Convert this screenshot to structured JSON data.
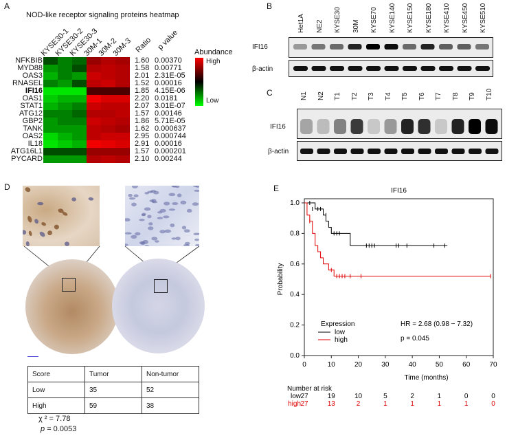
{
  "panelA": {
    "letter": "A",
    "title": "NOD-like receptor signaling proteins heatmap",
    "columns": [
      "KYSE30-1",
      "KYSE30-2",
      "KYSE30-3",
      "30M-1",
      "30M-2",
      "30M-3"
    ],
    "ratio_header": "Ratio",
    "pvalue_header": "p value",
    "legend_title": "Abundance",
    "legend_high": "High",
    "legend_low": "Low",
    "rows": [
      {
        "gene": "NFKBIB",
        "ratio": "1.60",
        "p": "0.00370"
      },
      {
        "gene": "MYD88",
        "ratio": "1.58",
        "p": "0.00771"
      },
      {
        "gene": "OAS3",
        "ratio": "2.01",
        "p": "2.31E-05"
      },
      {
        "gene": "RNASEL",
        "ratio": "1.52",
        "p": "0.00016"
      },
      {
        "gene": "IFI16",
        "ratio": "1.85",
        "p": "4.15E-06"
      },
      {
        "gene": "OAS1",
        "ratio": "2.20",
        "p": "0.0181"
      },
      {
        "gene": "STAT1",
        "ratio": "2.07",
        "p": "3.01E-07"
      },
      {
        "gene": "ATG12",
        "ratio": "1.57",
        "p": "0.00146"
      },
      {
        "gene": "GBP2",
        "ratio": "1.86",
        "p": "5.71E-05"
      },
      {
        "gene": "TANK",
        "ratio": "1.62",
        "p": "0.000637"
      },
      {
        "gene": "OAS2",
        "ratio": "2.95",
        "p": "0.000744"
      },
      {
        "gene": "IL18",
        "ratio": "2.91",
        "p": "0.00016"
      },
      {
        "gene": "ATG16L1",
        "ratio": "1.57",
        "p": "0.000201"
      },
      {
        "gene": "PYCARD",
        "ratio": "2.10",
        "p": "0.00244"
      }
    ],
    "colors": {
      "high": "#ff0000",
      "mid": "#000000",
      "low": "#00ff00"
    }
  },
  "panelB": {
    "letter": "B",
    "lanes": [
      "Het1A",
      "NE2",
      "KYSE30",
      "30M",
      "KYSE70",
      "KYSE140",
      "KYSE150",
      "KYSE180",
      "KYSE410",
      "KYSE450",
      "KYSE510"
    ],
    "row1": "IFI16",
    "row2": "β-actin"
  },
  "panelC": {
    "letter": "C",
    "lanes": [
      "N1",
      "N2",
      "T1",
      "T2",
      "T3",
      "T4",
      "T5",
      "T6",
      "T7",
      "T8",
      "T9",
      "T10"
    ],
    "row1": "IFI16",
    "row2": "β-actin"
  },
  "panelD": {
    "letter": "D",
    "table": {
      "header": [
        "Score",
        "Tumor",
        "Non-tumor"
      ],
      "rows": [
        [
          "Low",
          "35",
          "52"
        ],
        [
          "High",
          "59",
          "38"
        ]
      ]
    },
    "chi": "χ ² = 7.78",
    "p_label": "p",
    "p_value": "= 0.0053"
  },
  "panelE": {
    "letter": "E",
    "chart_data": {
      "type": "line",
      "title": "IFI16",
      "xlabel": "Time (months)",
      "ylabel": "Probability",
      "xlim": [
        0,
        70
      ],
      "ylim": [
        0,
        1.0
      ],
      "xticks": [
        0,
        10,
        20,
        30,
        40,
        50,
        60,
        70
      ],
      "yticks": [
        0,
        0.2,
        0.4,
        0.6,
        0.8,
        1.0
      ],
      "legend_title": "Expression",
      "hr_text": "HR = 2.68 (0.98 − 7.32)",
      "p_text": "p = 0.045",
      "series": [
        {
          "name": "low",
          "color": "#000000",
          "steps": [
            [
              0,
              1.0
            ],
            [
              4,
              0.96
            ],
            [
              7,
              0.92
            ],
            [
              8,
              0.88
            ],
            [
              9,
              0.84
            ],
            [
              10,
              0.8
            ],
            [
              17,
              0.72
            ],
            [
              53,
              0.72
            ]
          ],
          "censors": [
            [
              2,
              1.0
            ],
            [
              3,
              0.96
            ],
            [
              5,
              0.96
            ],
            [
              6,
              0.96
            ],
            [
              8,
              0.92
            ],
            [
              11,
              0.8
            ],
            [
              12,
              0.8
            ],
            [
              13,
              0.8
            ],
            [
              23,
              0.72
            ],
            [
              24,
              0.72
            ],
            [
              25,
              0.72
            ],
            [
              26,
              0.72
            ],
            [
              34,
              0.72
            ],
            [
              35,
              0.72
            ],
            [
              38,
              0.72
            ],
            [
              48,
              0.72
            ],
            [
              52,
              0.72
            ]
          ]
        },
        {
          "name": "high",
          "color": "#e00000",
          "steps": [
            [
              0,
              1.0
            ],
            [
              1,
              0.92
            ],
            [
              2,
              0.88
            ],
            [
              3,
              0.8
            ],
            [
              4,
              0.72
            ],
            [
              5,
              0.68
            ],
            [
              6,
              0.64
            ],
            [
              7,
              0.6
            ],
            [
              9,
              0.56
            ],
            [
              11,
              0.52
            ],
            [
              69,
              0.52
            ]
          ],
          "censors": [
            [
              2,
              0.88
            ],
            [
              10,
              0.56
            ],
            [
              12,
              0.52
            ],
            [
              13,
              0.52
            ],
            [
              14,
              0.52
            ],
            [
              15,
              0.52
            ],
            [
              17,
              0.52
            ],
            [
              21,
              0.52
            ],
            [
              69,
              0.52
            ]
          ]
        }
      ],
      "risk_title": "Number at risk",
      "risk_times": [
        0,
        10,
        20,
        30,
        40,
        50,
        60,
        70
      ],
      "risk_low": [
        "27",
        "19",
        "10",
        "5",
        "2",
        "1",
        "0",
        "0"
      ],
      "risk_high": [
        "27",
        "13",
        "2",
        "1",
        "1",
        "1",
        "1",
        "0"
      ],
      "risk_low_label": "low",
      "risk_high_label": "high"
    }
  }
}
